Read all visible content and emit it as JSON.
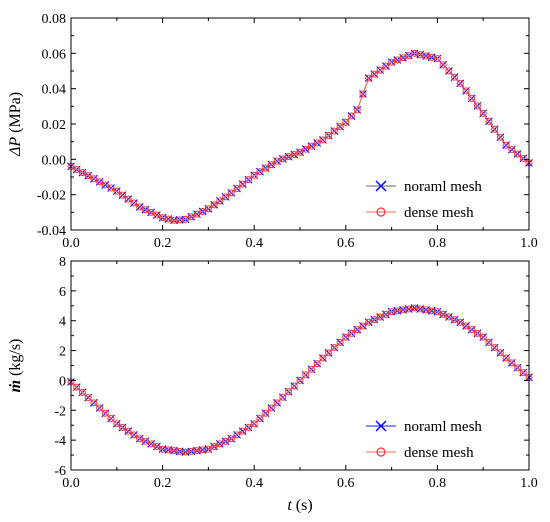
{
  "chart_data": [
    {
      "type": "line",
      "ylabel_symbol": "ΔP",
      "ylabel_unit": "(MPa)",
      "xlim": [
        0,
        1
      ],
      "ylim": [
        -0.04,
        0.08
      ],
      "xticks": [
        0.0,
        0.2,
        0.4,
        0.6,
        0.8,
        1.0
      ],
      "xtick_labels": [
        "0.0",
        "0.2",
        "0.4",
        "0.6",
        "0.8",
        "1.0"
      ],
      "yticks": [
        -0.04,
        -0.02,
        0.0,
        0.02,
        0.04,
        0.06,
        0.08
      ],
      "ytick_labels": [
        "-0.04",
        "-0.02",
        "0.00",
        "0.02",
        "0.04",
        "0.06",
        "0.08"
      ],
      "grid": false,
      "legend_position": "bottom-right",
      "series": [
        {
          "name": "noraml mesh",
          "marker": "x",
          "color": "#0000ff",
          "line_color": "#6a6a6a",
          "x": [
            0.0,
            0.05,
            0.1,
            0.15,
            0.2,
            0.225,
            0.25,
            0.3,
            0.35,
            0.4,
            0.45,
            0.5,
            0.55,
            0.6,
            0.625,
            0.65,
            0.7,
            0.75,
            0.8,
            0.85,
            0.9,
            0.95,
            1.0
          ],
          "y": [
            -0.004,
            -0.011,
            -0.018,
            -0.027,
            -0.033,
            -0.0345,
            -0.034,
            -0.028,
            -0.019,
            -0.009,
            -0.001,
            0.004,
            0.011,
            0.021,
            0.028,
            0.046,
            0.055,
            0.06,
            0.057,
            0.043,
            0.026,
            0.008,
            -0.002
          ]
        },
        {
          "name": "dense mesh",
          "marker": "o",
          "color": "#ff3333",
          "line_color": "#ff6666",
          "x": [
            0.0,
            0.05,
            0.1,
            0.15,
            0.2,
            0.225,
            0.25,
            0.3,
            0.35,
            0.4,
            0.45,
            0.5,
            0.55,
            0.6,
            0.625,
            0.65,
            0.7,
            0.75,
            0.8,
            0.85,
            0.9,
            0.95,
            1.0
          ],
          "y": [
            -0.004,
            -0.011,
            -0.018,
            -0.027,
            -0.033,
            -0.0345,
            -0.034,
            -0.028,
            -0.019,
            -0.009,
            -0.001,
            0.004,
            0.011,
            0.021,
            0.028,
            0.046,
            0.055,
            0.06,
            0.057,
            0.043,
            0.026,
            0.008,
            -0.002
          ]
        }
      ]
    },
    {
      "type": "line",
      "xlabel_symbol": "t",
      "xlabel_unit": "(s)",
      "ylabel_symbol": "ṁ",
      "ylabel_unit": "(kg/s)",
      "xlim": [
        0,
        1
      ],
      "ylim": [
        -6,
        8
      ],
      "xticks": [
        0.0,
        0.2,
        0.4,
        0.6,
        0.8,
        1.0
      ],
      "xtick_labels": [
        "0.0",
        "0.2",
        "0.4",
        "0.6",
        "0.8",
        "1.0"
      ],
      "yticks": [
        -6,
        -4,
        -2,
        0,
        2,
        4,
        6,
        8
      ],
      "ytick_labels": [
        "-6",
        "-4",
        "-2",
        "0",
        "2",
        "4",
        "6",
        "8"
      ],
      "grid": false,
      "legend_position": "bottom-right",
      "series": [
        {
          "name": "noraml mesh",
          "marker": "x",
          "color": "#0000ff",
          "line_color": "#1a1aff",
          "x": [
            0.0,
            0.05,
            0.1,
            0.15,
            0.2,
            0.25,
            0.3,
            0.35,
            0.4,
            0.45,
            0.5,
            0.55,
            0.6,
            0.65,
            0.7,
            0.75,
            0.8,
            0.85,
            0.9,
            0.95,
            1.0
          ],
          "y": [
            -0.1,
            -1.5,
            -2.9,
            -3.9,
            -4.6,
            -4.8,
            -4.6,
            -3.9,
            -2.9,
            -1.5,
            0.0,
            1.5,
            2.9,
            3.9,
            4.6,
            4.85,
            4.6,
            3.9,
            2.9,
            1.5,
            0.2
          ]
        },
        {
          "name": "dense mesh",
          "marker": "o",
          "color": "#ff3333",
          "line_color": "#ff6666",
          "x": [
            0.0,
            0.05,
            0.1,
            0.15,
            0.2,
            0.25,
            0.3,
            0.35,
            0.4,
            0.45,
            0.5,
            0.55,
            0.6,
            0.65,
            0.7,
            0.75,
            0.8,
            0.85,
            0.9,
            0.95,
            1.0
          ],
          "y": [
            -0.1,
            -1.5,
            -2.9,
            -3.9,
            -4.6,
            -4.8,
            -4.6,
            -3.9,
            -2.9,
            -1.5,
            0.0,
            1.5,
            2.9,
            3.9,
            4.6,
            4.85,
            4.6,
            3.9,
            2.9,
            1.5,
            0.2
          ]
        }
      ]
    }
  ]
}
